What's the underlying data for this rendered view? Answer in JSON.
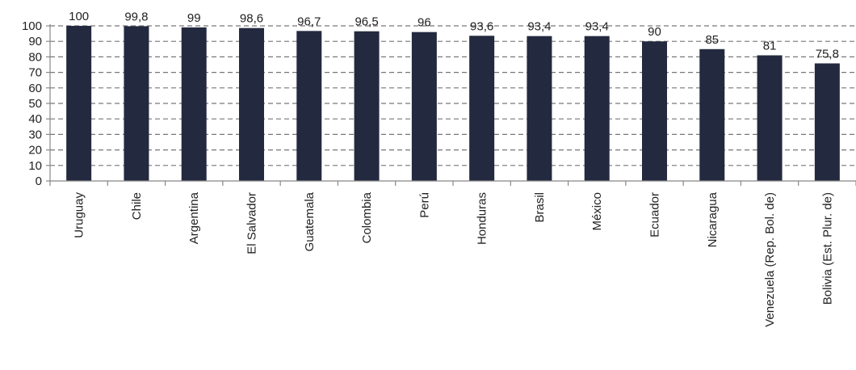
{
  "chart_data": {
    "type": "bar",
    "title": "",
    "xlabel": "",
    "ylabel": "",
    "categories": [
      "Uruguay",
      "Chile",
      "Argentina",
      "El Salvador",
      "Guatemala",
      "Colombia",
      "Perú",
      "Honduras",
      "Brasil",
      "México",
      "Ecuador",
      "Nicaragua",
      "Venezuela (Rep. Bol. de)",
      "Bolivia (Est. Plur. de)"
    ],
    "values": [
      100,
      99.8,
      99,
      98.6,
      96.7,
      96.5,
      96,
      93.6,
      93.4,
      93.4,
      90,
      85,
      81,
      75.8
    ],
    "value_labels": [
      "100",
      "99,8",
      "99",
      "98,6",
      "96,7",
      "96,5",
      "96",
      "93,6",
      "93,4",
      "93,4",
      "90",
      "85",
      "81",
      "75,8"
    ],
    "ylim": [
      0,
      100
    ],
    "yticks": [
      0,
      10,
      20,
      30,
      40,
      50,
      60,
      70,
      80,
      90,
      100
    ],
    "ytick_labels": [
      "0",
      "10",
      "20",
      "30",
      "40",
      "50",
      "60",
      "70",
      "80",
      "90",
      "100"
    ],
    "grid": true,
    "grid_style": "dashed",
    "legend": "none",
    "bar_color": "#232A3F",
    "grid_color": "#777777"
  }
}
